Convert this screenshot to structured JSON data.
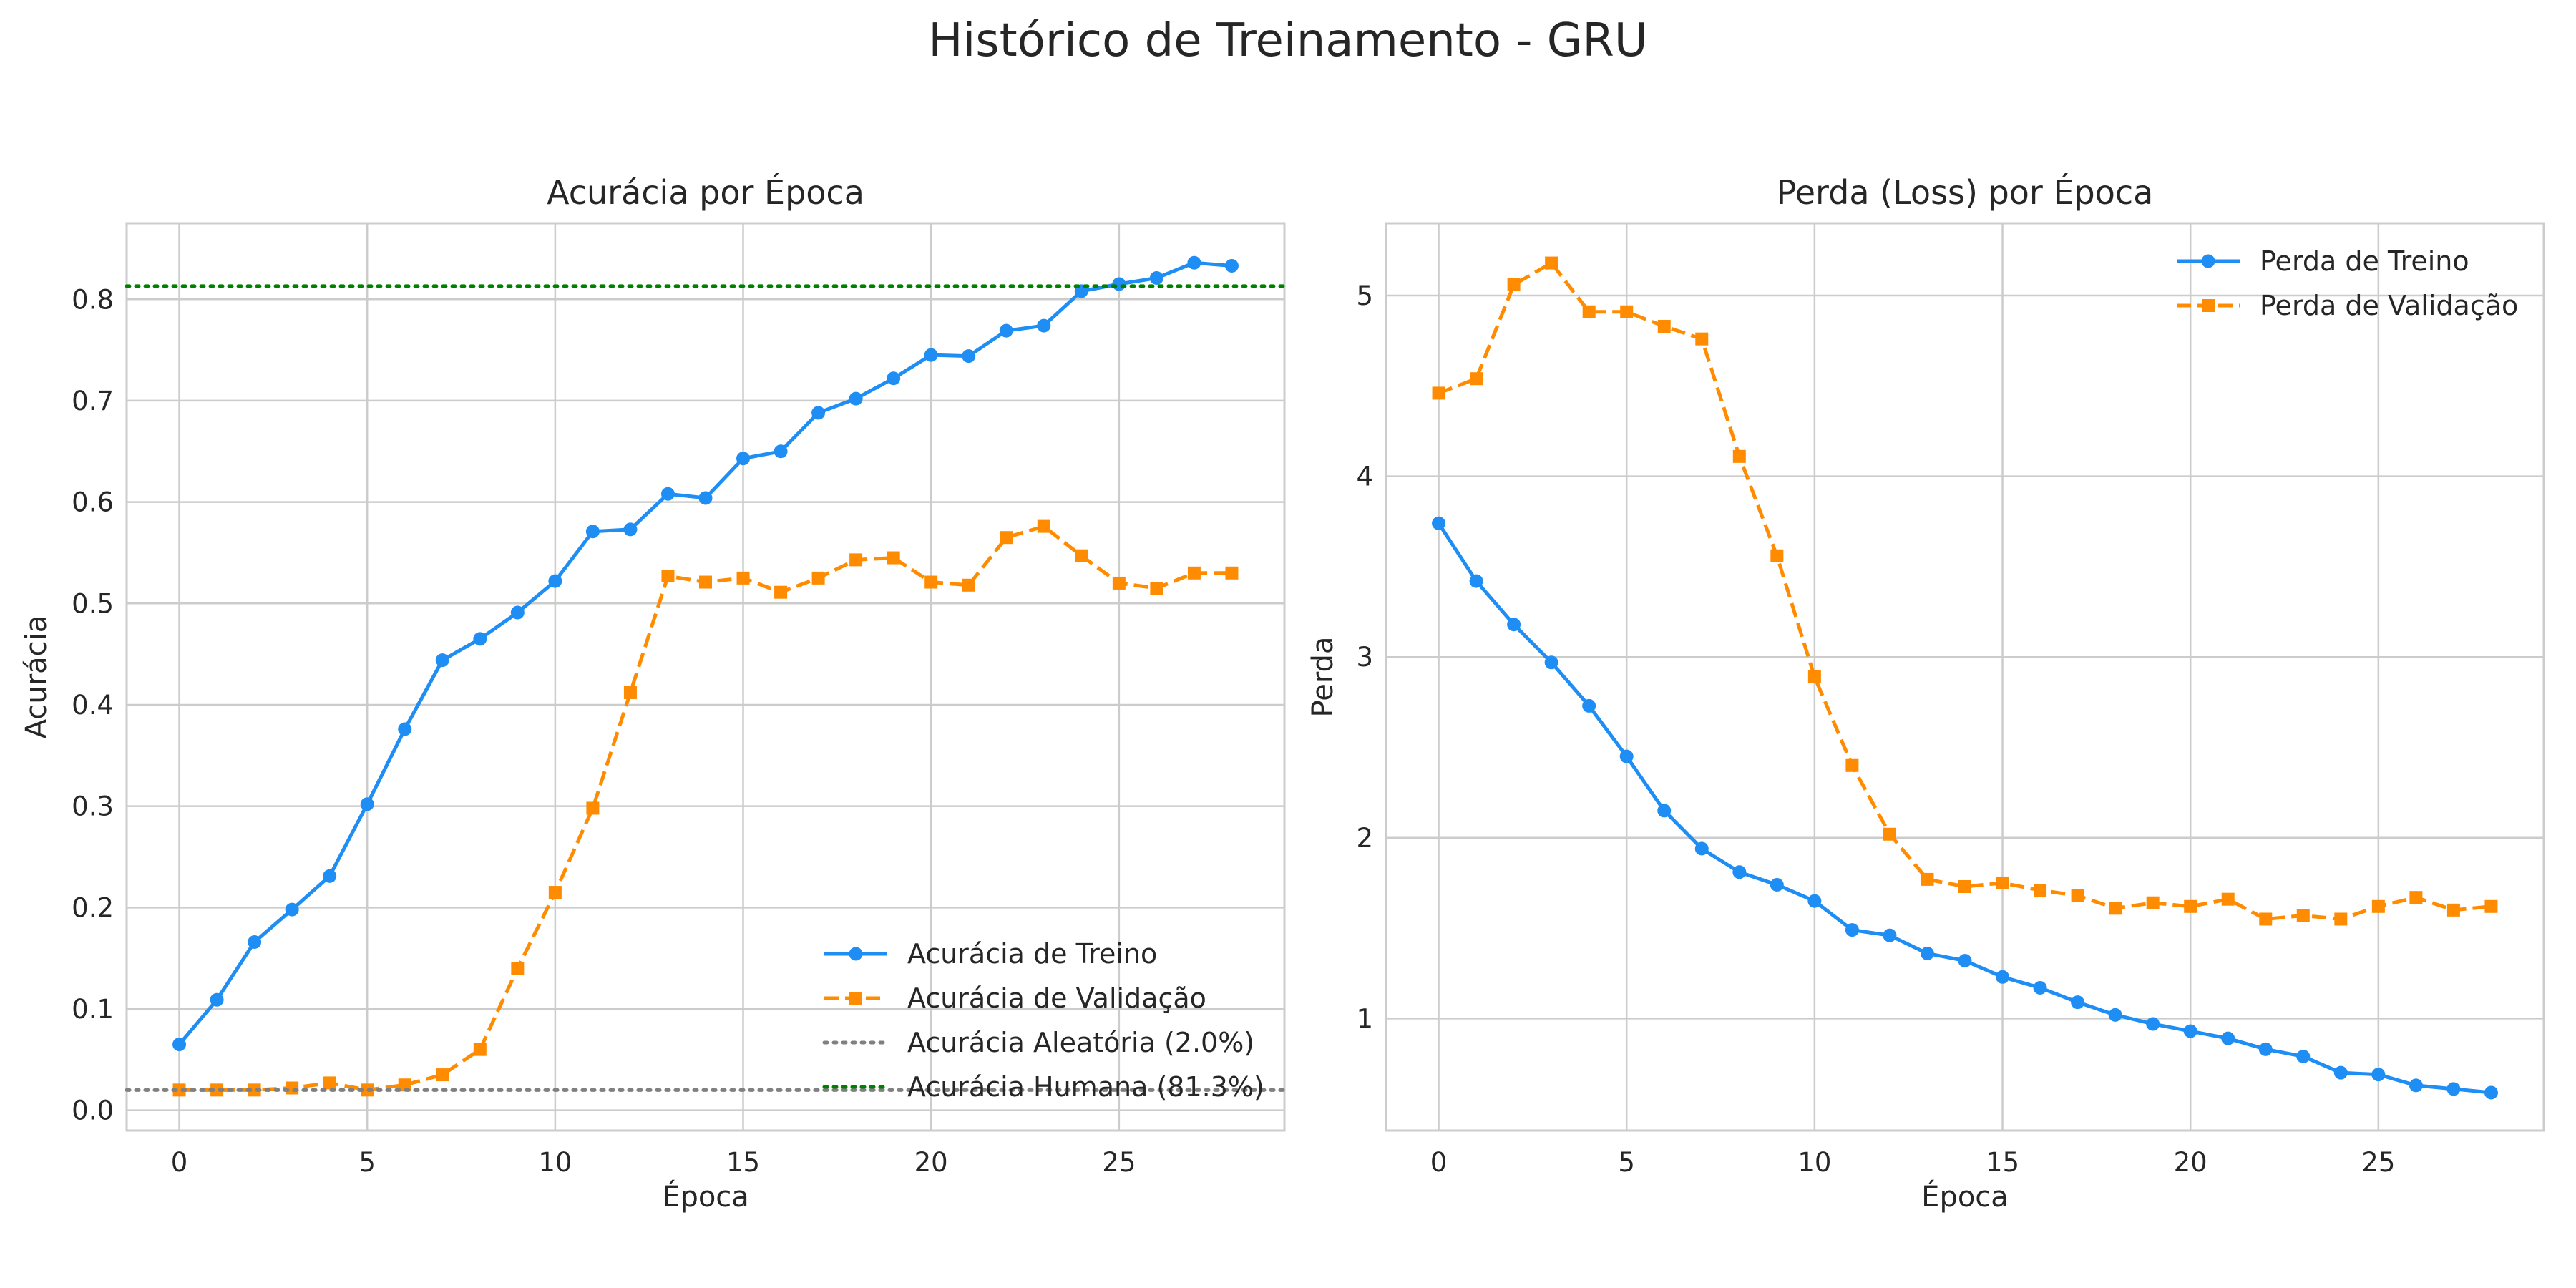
{
  "suptitle": "Histórico de Treinamento - GRU",
  "colors": {
    "train": "#1e8ef5",
    "validation": "#ff8c00",
    "random": "#808080",
    "human": "#008000"
  },
  "chart_data": [
    {
      "type": "line",
      "title": "Acurácia por Época",
      "xlabel": "Época",
      "ylabel": "Acurácia",
      "xlim": [
        -1.4,
        29.4
      ],
      "ylim": [
        -0.02,
        0.875
      ],
      "xticks": [
        0,
        5,
        10,
        15,
        20,
        25
      ],
      "yticks": [
        0.0,
        0.1,
        0.2,
        0.3,
        0.4,
        0.5,
        0.6,
        0.7,
        0.8
      ],
      "grid": true,
      "legend_position": "lower-right",
      "x": [
        0,
        1,
        2,
        3,
        4,
        5,
        6,
        7,
        8,
        9,
        10,
        11,
        12,
        13,
        14,
        15,
        16,
        17,
        18,
        19,
        20,
        21,
        22,
        23,
        24,
        25,
        26,
        27,
        28
      ],
      "series": [
        {
          "name": "Acurácia de Treino",
          "style": "solid",
          "marker": "circle",
          "color": "#1e8ef5",
          "values": [
            0.065,
            0.109,
            0.166,
            0.198,
            0.231,
            0.302,
            0.376,
            0.444,
            0.465,
            0.491,
            0.522,
            0.571,
            0.573,
            0.608,
            0.604,
            0.643,
            0.65,
            0.688,
            0.702,
            0.722,
            0.745,
            0.744,
            0.769,
            0.774,
            0.808,
            0.815,
            0.821,
            0.836,
            0.833
          ]
        },
        {
          "name": "Acurácia de Validação",
          "style": "dashed",
          "marker": "square",
          "color": "#ff8c00",
          "values": [
            0.02,
            0.02,
            0.02,
            0.022,
            0.027,
            0.02,
            0.025,
            0.035,
            0.06,
            0.14,
            0.215,
            0.298,
            0.412,
            0.527,
            0.521,
            0.525,
            0.511,
            0.525,
            0.543,
            0.545,
            0.521,
            0.518,
            0.565,
            0.576,
            0.547,
            0.52,
            0.515,
            0.53,
            0.53
          ]
        }
      ],
      "reference_lines": [
        {
          "name": "Acurácia Aleatória (2.0%)",
          "value": 0.02,
          "style": "dotted",
          "color": "#808080"
        },
        {
          "name": "Acurácia Humana (81.3%)",
          "value": 0.813,
          "style": "dotted",
          "color": "#008000"
        }
      ]
    },
    {
      "type": "line",
      "title": "Perda (Loss) por Época",
      "xlabel": "Época",
      "ylabel": "Perda",
      "xlim": [
        -1.4,
        29.4
      ],
      "ylim": [
        0.38,
        5.4
      ],
      "xticks": [
        0,
        5,
        10,
        15,
        20,
        25
      ],
      "yticks": [
        1,
        2,
        3,
        4,
        5
      ],
      "grid": true,
      "legend_position": "upper-right",
      "x": [
        0,
        1,
        2,
        3,
        4,
        5,
        6,
        7,
        8,
        9,
        10,
        11,
        12,
        13,
        14,
        15,
        16,
        17,
        18,
        19,
        20,
        21,
        22,
        23,
        24,
        25,
        26,
        27,
        28
      ],
      "series": [
        {
          "name": "Perda de Treino",
          "style": "solid",
          "marker": "circle",
          "color": "#1e8ef5",
          "values": [
            3.74,
            3.42,
            3.18,
            2.97,
            2.73,
            2.45,
            2.15,
            1.94,
            1.81,
            1.74,
            1.65,
            1.49,
            1.46,
            1.36,
            1.32,
            1.23,
            1.17,
            1.09,
            1.02,
            0.97,
            0.93,
            0.89,
            0.83,
            0.79,
            0.7,
            0.69,
            0.63,
            0.61,
            0.59
          ]
        },
        {
          "name": "Perda de Validação",
          "style": "dashed",
          "marker": "square",
          "color": "#ff8c00",
          "values": [
            4.46,
            4.54,
            5.06,
            5.18,
            4.91,
            4.91,
            4.83,
            4.76,
            4.11,
            3.56,
            2.89,
            2.4,
            2.02,
            1.77,
            1.73,
            1.75,
            1.71,
            1.68,
            1.61,
            1.64,
            1.62,
            1.66,
            1.55,
            1.57,
            1.55,
            1.62,
            1.67,
            1.6,
            1.62
          ]
        }
      ],
      "reference_lines": []
    }
  ]
}
